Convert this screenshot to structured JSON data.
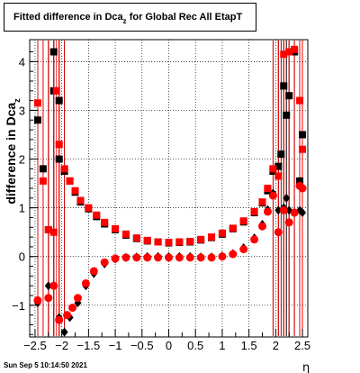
{
  "title": {
    "main": "Fitted difference in Dca",
    "sub": "z",
    "rest": " for Global Rec All EtapT"
  },
  "stamp": "Sun Sep  5 10:14:50 2021",
  "chart_data": {
    "type": "scatter",
    "xlabel": "η",
    "ylabel_main": "difference in Dca",
    "ylabel_sub": "z",
    "xlim": [
      -2.6,
      2.6
    ],
    "ylim": [
      -1.65,
      4.45
    ],
    "grid": true,
    "xticks": [
      -2.5,
      -2,
      -1.5,
      -1,
      -0.5,
      0,
      0.5,
      1,
      1.5,
      2,
      2.5
    ],
    "xtick_labels": [
      "−2.5",
      "−2",
      "−1.5",
      "−1",
      "−0.5",
      "0",
      "0.5",
      "1",
      "1.5",
      "2",
      "2.5"
    ],
    "yticks": [
      -1,
      0,
      1,
      2,
      3,
      4
    ],
    "ytick_labels": [
      "−1",
      "0",
      "1",
      "2",
      "3",
      "4"
    ],
    "series": [
      {
        "color": "#000000",
        "marker": "square",
        "points": [
          [
            -2.45,
            2.8
          ],
          [
            -2.35,
            1.8
          ],
          [
            -2.25,
            0.55
          ],
          [
            -2.15,
            4.2
          ],
          [
            -2.15,
            3.4
          ],
          [
            -2.05,
            3.2
          ],
          [
            -2.05,
            2.0
          ],
          [
            -1.95,
            1.75
          ],
          [
            -1.85,
            1.55
          ],
          [
            -1.75,
            1.32
          ],
          [
            -1.65,
            1.12
          ],
          [
            -1.5,
            0.98
          ],
          [
            -1.35,
            0.82
          ],
          [
            -1.2,
            0.67
          ],
          [
            -1.0,
            0.55
          ],
          [
            -0.8,
            0.44
          ],
          [
            -0.6,
            0.37
          ],
          [
            -0.4,
            0.32
          ],
          [
            -0.2,
            0.3
          ],
          [
            0.0,
            0.28
          ],
          [
            0.2,
            0.29
          ],
          [
            0.4,
            0.3
          ],
          [
            0.6,
            0.34
          ],
          [
            0.8,
            0.39
          ],
          [
            1.0,
            0.46
          ],
          [
            1.2,
            0.57
          ],
          [
            1.4,
            0.71
          ],
          [
            1.6,
            0.9
          ],
          [
            1.75,
            1.1
          ],
          [
            1.85,
            1.35
          ],
          [
            1.95,
            1.75
          ],
          [
            2.05,
            1.85
          ],
          [
            2.1,
            2.1
          ],
          [
            2.15,
            3.5
          ],
          [
            2.2,
            2.9
          ],
          [
            2.25,
            3.3
          ],
          [
            2.35,
            4.2
          ],
          [
            2.45,
            1.55
          ],
          [
            2.5,
            2.5
          ]
        ]
      },
      {
        "color": "#000000",
        "marker": "diamond",
        "points": [
          [
            -2.45,
            -0.95
          ],
          [
            -2.25,
            -0.6
          ],
          [
            -2.15,
            -0.6
          ],
          [
            -2.05,
            -1.25
          ],
          [
            -1.95,
            -1.55
          ],
          [
            -1.85,
            -1.25
          ],
          [
            -1.7,
            -0.95
          ],
          [
            -1.55,
            -0.6
          ],
          [
            -1.4,
            -0.35
          ],
          [
            -1.2,
            -0.15
          ],
          [
            -1.0,
            -0.05
          ],
          [
            -0.8,
            -0.02
          ],
          [
            -0.6,
            -0.01
          ],
          [
            -0.4,
            0.0
          ],
          [
            -0.2,
            0.0
          ],
          [
            0.0,
            0.0
          ],
          [
            0.2,
            0.0
          ],
          [
            0.4,
            0.0
          ],
          [
            0.6,
            -0.01
          ],
          [
            0.8,
            -0.01
          ],
          [
            1.0,
            0.01
          ],
          [
            1.2,
            0.06
          ],
          [
            1.4,
            0.18
          ],
          [
            1.6,
            0.38
          ],
          [
            1.75,
            0.66
          ],
          [
            1.85,
            0.96
          ],
          [
            1.95,
            1.3
          ],
          [
            2.05,
            0.95
          ],
          [
            2.15,
            1.0
          ],
          [
            2.2,
            1.2
          ],
          [
            2.25,
            0.95
          ],
          [
            2.35,
            0.9
          ],
          [
            2.45,
            0.95
          ],
          [
            2.5,
            0.9
          ]
        ]
      },
      {
        "color": "#ff0000",
        "marker": "square",
        "points": [
          [
            -2.45,
            3.15
          ],
          [
            -2.35,
            1.55
          ],
          [
            -2.25,
            0.55
          ],
          [
            -2.15,
            0.5
          ],
          [
            -2.1,
            3.4
          ],
          [
            -2.05,
            2.3
          ],
          [
            -1.95,
            1.8
          ],
          [
            -1.85,
            1.55
          ],
          [
            -1.75,
            1.35
          ],
          [
            -1.65,
            1.15
          ],
          [
            -1.5,
            1.0
          ],
          [
            -1.35,
            0.85
          ],
          [
            -1.2,
            0.7
          ],
          [
            -1.0,
            0.57
          ],
          [
            -0.8,
            0.46
          ],
          [
            -0.6,
            0.38
          ],
          [
            -0.4,
            0.33
          ],
          [
            -0.2,
            0.3
          ],
          [
            0.0,
            0.29
          ],
          [
            0.2,
            0.3
          ],
          [
            0.4,
            0.31
          ],
          [
            0.6,
            0.35
          ],
          [
            0.8,
            0.4
          ],
          [
            1.0,
            0.48
          ],
          [
            1.2,
            0.58
          ],
          [
            1.4,
            0.73
          ],
          [
            1.6,
            0.92
          ],
          [
            1.75,
            1.12
          ],
          [
            1.85,
            1.4
          ],
          [
            1.95,
            1.8
          ],
          [
            2.05,
            1.65
          ],
          [
            2.15,
            4.15
          ],
          [
            2.25,
            4.2
          ],
          [
            2.35,
            4.25
          ],
          [
            2.45,
            3.2
          ],
          [
            2.5,
            2.2
          ]
        ]
      },
      {
        "color": "#ff0000",
        "marker": "circle",
        "points": [
          [
            -2.45,
            -0.9
          ],
          [
            -2.25,
            -0.85
          ],
          [
            -2.15,
            -0.6
          ],
          [
            -2.05,
            -1.3
          ],
          [
            -1.9,
            -1.2
          ],
          [
            -1.8,
            -1.05
          ],
          [
            -1.7,
            -0.85
          ],
          [
            -1.55,
            -0.55
          ],
          [
            -1.4,
            -0.3
          ],
          [
            -1.2,
            -0.12
          ],
          [
            -1.0,
            -0.04
          ],
          [
            -0.8,
            -0.02
          ],
          [
            -0.6,
            -0.02
          ],
          [
            -0.4,
            -0.02
          ],
          [
            -0.2,
            -0.02
          ],
          [
            0.0,
            -0.02
          ],
          [
            0.2,
            -0.02
          ],
          [
            0.4,
            -0.02
          ],
          [
            0.6,
            -0.02
          ],
          [
            0.8,
            -0.02
          ],
          [
            1.0,
            0.0
          ],
          [
            1.2,
            0.05
          ],
          [
            1.4,
            0.15
          ],
          [
            1.6,
            0.35
          ],
          [
            1.75,
            0.62
          ],
          [
            1.85,
            0.92
          ],
          [
            1.95,
            1.25
          ],
          [
            2.05,
            0.5
          ],
          [
            2.15,
            0.95
          ],
          [
            2.25,
            0.7
          ],
          [
            2.35,
            0.9
          ],
          [
            2.45,
            1.45
          ],
          [
            2.5,
            1.4
          ]
        ]
      }
    ]
  }
}
